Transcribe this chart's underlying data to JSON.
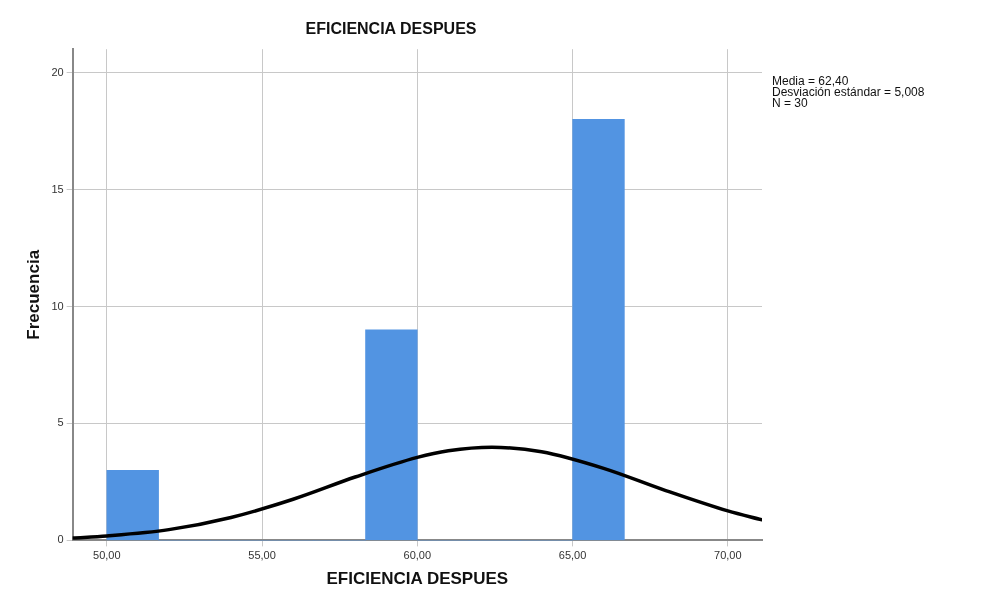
{
  "chart_data": {
    "type": "histogram",
    "title": "EFICIENCIA DESPUES",
    "xlabel": "EFICIENCIA DESPUES",
    "ylabel": "Frecuencia",
    "bins": [
      50,
      51.67,
      53.33,
      55,
      56.67,
      58.33,
      60,
      61.67,
      63.33,
      65,
      66.67
    ],
    "values": [
      3,
      0,
      0,
      0,
      0,
      9,
      0,
      0,
      0,
      18
    ],
    "color": "#5294e2",
    "series": [
      {
        "type": "line",
        "color": "#000000",
        "x": [
          48.9,
          50,
          52,
          54,
          56,
          58,
          60,
          61,
          62.4,
          64,
          66,
          68,
          70,
          71.1
        ],
        "values": [
          0.1,
          0.19,
          0.46,
          0.98,
          1.76,
          2.71,
          3.55,
          3.83,
          3.98,
          3.79,
          3.08,
          2.13,
          1.26,
          0.88
        ]
      }
    ],
    "xlim": [
      48.9,
      71.1
    ],
    "xticks": [
      {
        "value": 50,
        "label": "50,00"
      },
      {
        "value": 55,
        "label": "55,00"
      },
      {
        "value": 60,
        "label": "60,00"
      },
      {
        "value": 65,
        "label": "65,00"
      },
      {
        "value": 70,
        "label": "70,00"
      }
    ],
    "ylim": [
      0,
      21
    ],
    "yticks": [
      0,
      5,
      10,
      15,
      20
    ],
    "grid": true,
    "legend": false,
    "marker": "none",
    "annotations": [
      "Media = 62,40",
      "Desviación estándar = 5,008",
      "N = 30"
    ]
  }
}
